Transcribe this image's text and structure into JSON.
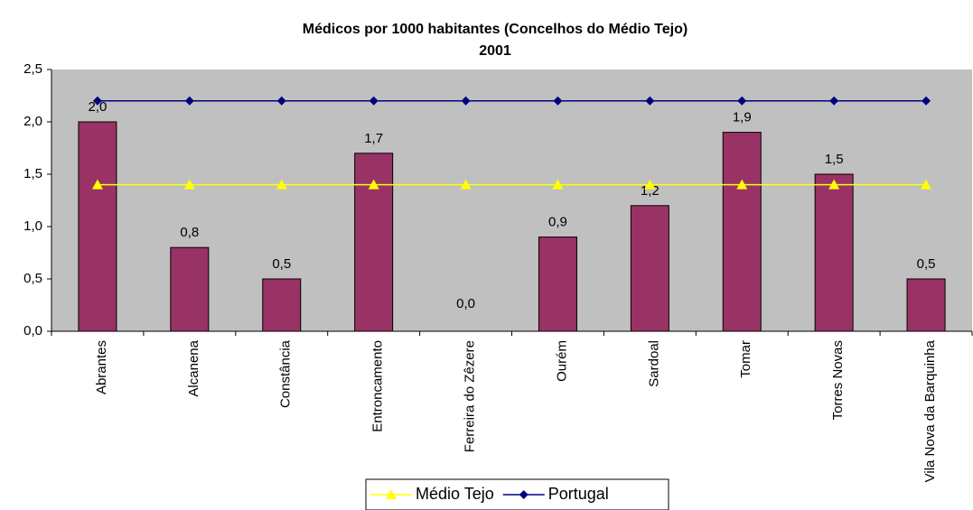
{
  "chart_data": {
    "type": "bar",
    "title": "Médicos por 1000 habitantes (Concelhos do Médio Tejo)",
    "subtitle": "2001",
    "categories": [
      "Abrantes",
      "Alcanena",
      "Constância",
      "Entroncamento",
      "Ferreira do Zêzere",
      "Ourém",
      "Sardoal",
      "Tomar",
      "Torres Novas",
      "Vila Nova da Barquinha"
    ],
    "values": [
      2.0,
      0.8,
      0.5,
      1.7,
      0.0,
      0.9,
      1.2,
      1.9,
      1.5,
      0.5
    ],
    "value_labels": [
      "2,0",
      "0,8",
      "0,5",
      "1,7",
      "0,0",
      "0,9",
      "1,2",
      "1,9",
      "1,5",
      "0,5"
    ],
    "color": "#993366",
    "series": [
      {
        "name": "Médio Tejo",
        "color": "#ffff00",
        "marker": "triangle",
        "values": [
          1.4,
          1.4,
          1.4,
          1.4,
          1.4,
          1.4,
          1.4,
          1.4,
          1.4,
          1.4
        ]
      },
      {
        "name": "Portugal",
        "color": "#000080",
        "marker": "diamond",
        "values": [
          2.2,
          2.2,
          2.2,
          2.2,
          2.2,
          2.2,
          2.2,
          2.2,
          2.2,
          2.2
        ]
      }
    ],
    "ylim": [
      0,
      2.5
    ],
    "yticks": [
      {
        "value": 0,
        "label": "0,0"
      },
      {
        "value": 0.5,
        "label": "0,5"
      },
      {
        "value": 1.0,
        "label": "1,0"
      },
      {
        "value": 1.5,
        "label": "1,5"
      },
      {
        "value": 2.0,
        "label": "2,0"
      },
      {
        "value": 2.5,
        "label": "2,5"
      }
    ],
    "grid": false,
    "legend": "bottom"
  }
}
